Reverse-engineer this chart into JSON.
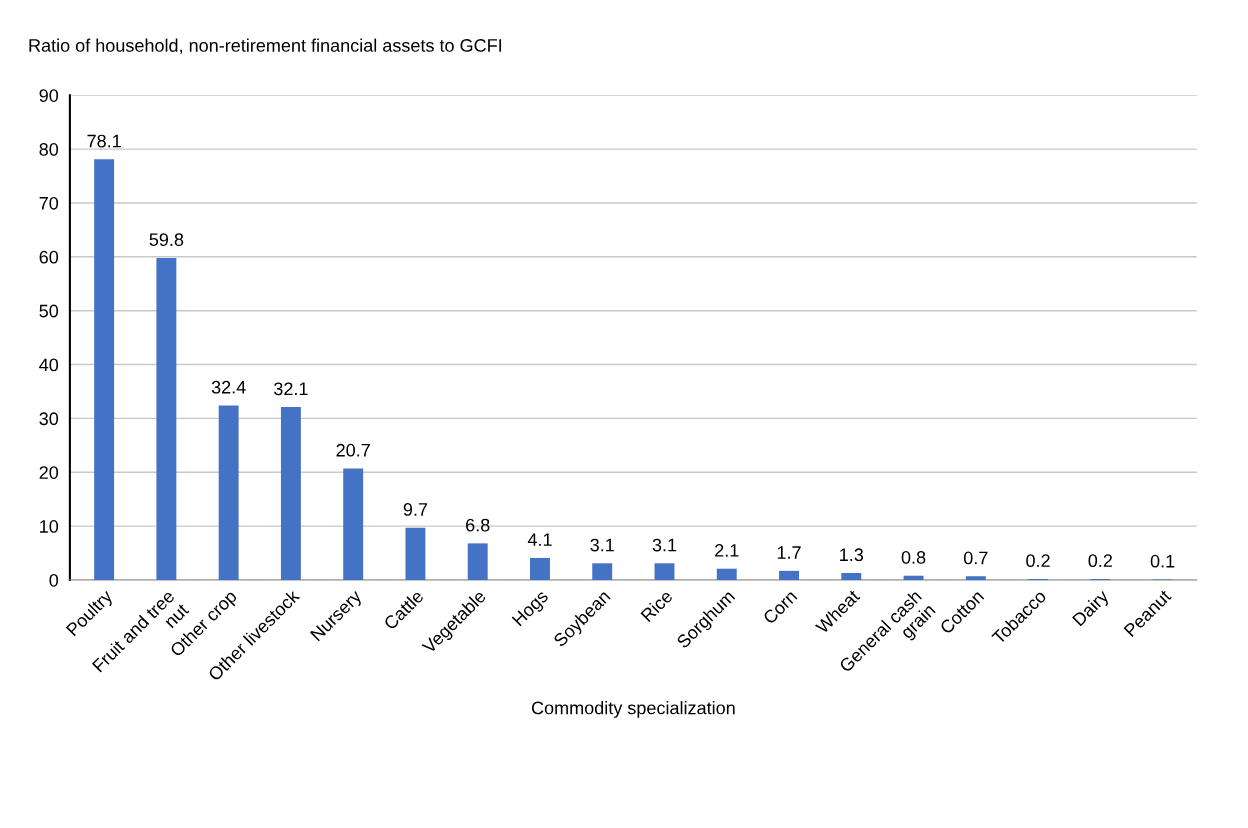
{
  "chart_data": {
    "type": "bar",
    "title": "Ratio of household, non-retirement financial assets to GCFI",
    "xlabel": "Commodity specialization",
    "categories": [
      "Poultry",
      "Fruit and tree\nnut",
      "Other crop",
      "Other livestock",
      "Nursery",
      "Cattle",
      "Vegetable",
      "Hogs",
      "Soybean",
      "Rice",
      "Sorghum",
      "Corn",
      "Wheat",
      "General cash\ngrain",
      "Cotton",
      "Tobacco",
      "Dairy",
      "Peanut"
    ],
    "values": [
      78.1,
      59.8,
      32.4,
      32.1,
      20.7,
      9.7,
      6.8,
      4.1,
      3.1,
      3.1,
      2.1,
      1.7,
      1.3,
      0.8,
      0.7,
      0.2,
      0.2,
      0.1
    ],
    "color": "#4472c4",
    "ylim": [
      0,
      90
    ],
    "yticks": [
      0,
      10,
      20,
      30,
      40,
      50,
      60,
      70,
      80,
      90
    ],
    "grid": "y",
    "data_labels": true
  }
}
